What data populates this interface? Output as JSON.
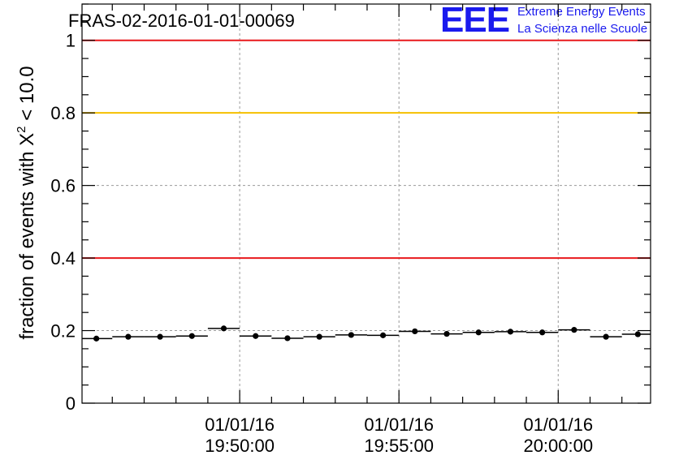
{
  "chart_data": {
    "type": "scatter",
    "title": "FRAS-02-2016-01-01-00069",
    "ylabel": "fraction of events with X² < 10.0",
    "ylabel_parts": {
      "pre": "fraction of events with X",
      "sup": "2",
      "post": " < 10.0"
    },
    "xlabel": "",
    "ylim": [
      0,
      1.1
    ],
    "y_ticks": [
      0,
      0.2,
      0.4,
      0.6,
      0.8,
      1
    ],
    "y_tick_labels": [
      "0",
      "0.2",
      "0.4",
      "0.6",
      "0.8",
      "1"
    ],
    "x_unit": "seconds",
    "x_range_seconds": [
      -297,
      774
    ],
    "x_tick_seconds": [
      0,
      300,
      600
    ],
    "x_tick_labels": [
      {
        "date": "01/01/16",
        "time": "19:50:00"
      },
      {
        "date": "01/01/16",
        "time": "19:55:00"
      },
      {
        "date": "01/01/16",
        "time": "20:00:00"
      }
    ],
    "reference_lines": [
      {
        "value": 1.0,
        "color": "#e8191c"
      },
      {
        "value": 0.8,
        "color": "#f5c000"
      },
      {
        "value": 0.4,
        "color": "#e8191c"
      }
    ],
    "grid": true,
    "series": [
      {
        "marker_color": "#000000",
        "bin_width_seconds": 60,
        "x_seconds": [
          -270,
          -210,
          -150,
          -90,
          -30,
          30,
          90,
          150,
          210,
          270,
          330,
          390,
          450,
          510,
          570,
          630,
          690,
          750
        ],
        "values": [
          0.178,
          0.183,
          0.183,
          0.185,
          0.206,
          0.185,
          0.179,
          0.183,
          0.188,
          0.187,
          0.198,
          0.191,
          0.195,
          0.197,
          0.195,
          0.202,
          0.183,
          0.19
        ]
      }
    ]
  },
  "logo": {
    "letters": "EEE",
    "line1": "Extreme Energy Events",
    "line2": "La Scienza nelle Scuole",
    "color": "#1a1aee"
  }
}
